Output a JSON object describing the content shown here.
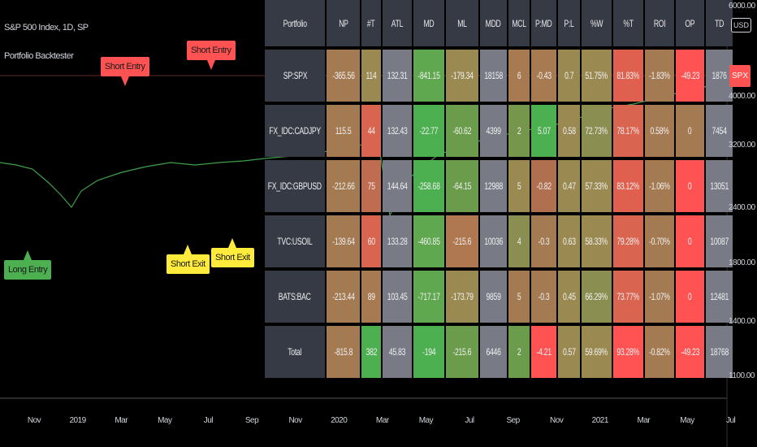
{
  "chart_title": "S&P 500 Index, 1D, SP",
  "indicator_title": "Portfolio Backtester",
  "signals": [
    {
      "label": "Short Entry",
      "color": "#ff5252"
    },
    {
      "label": "Short Entry",
      "color": "#ff5252"
    },
    {
      "label": "Long Entry",
      "color": "#4caf50"
    },
    {
      "label": "Short Exit",
      "color": "#ffeb3b"
    },
    {
      "label": "Short Exit",
      "color": "#ffeb3b"
    }
  ],
  "table": {
    "headers": [
      "Portfolio",
      "NP",
      "#T",
      "ATL",
      "MD",
      "ML",
      "MDD",
      "MCL",
      "P:MD",
      "P:L",
      "%W",
      "%T",
      "ROI",
      "OP",
      "TD"
    ],
    "rows": [
      {
        "name": "SP:SPX",
        "cells": [
          [
            "-365.56",
            "#a47a52"
          ],
          [
            "114",
            "#9a8a52"
          ],
          [
            "132.31",
            "#787b86"
          ],
          [
            "-841.15",
            "#5fa84f"
          ],
          [
            "-179.34",
            "#9a8a52"
          ],
          [
            "18158",
            "#787b86"
          ],
          [
            "6",
            "#a87a52"
          ],
          [
            "-0.43",
            "#a87a52"
          ],
          [
            "0.7",
            "#9a8a52"
          ],
          [
            "51.75%",
            "#9a8a52"
          ],
          [
            "81.83%",
            "#e0604f"
          ],
          [
            "-1.83%",
            "#a47a52"
          ],
          [
            "-49.23",
            "#ff5252"
          ],
          [
            "1876",
            "#787b86"
          ]
        ]
      },
      {
        "name": "FX_IDC:CADJPY",
        "cells": [
          [
            "115.5",
            "#a47a52"
          ],
          [
            "44",
            "#d9644f"
          ],
          [
            "132.43",
            "#787b86"
          ],
          [
            "-22.77",
            "#4caf50"
          ],
          [
            "-60.62",
            "#6a9c4c"
          ],
          [
            "4399",
            "#787b86"
          ],
          [
            "2",
            "#76964c"
          ],
          [
            "5.07",
            "#4caf50"
          ],
          [
            "0.58",
            "#9a8a52"
          ],
          [
            "72.73%",
            "#8a8e50"
          ],
          [
            "78.17%",
            "#d9644f"
          ],
          [
            "0.58%",
            "#a47a52"
          ],
          [
            "0",
            "#a47a52"
          ],
          [
            "7454",
            "#787b86"
          ]
        ]
      },
      {
        "name": "FX_IDC:GBPUSD",
        "cells": [
          [
            "-212.66",
            "#a47a52"
          ],
          [
            "75",
            "#c06c50"
          ],
          [
            "144.64",
            "#787b86"
          ],
          [
            "-258.68",
            "#4caf50"
          ],
          [
            "-64.15",
            "#6a9c4c"
          ],
          [
            "12988",
            "#787b86"
          ],
          [
            "5",
            "#9a8a52"
          ],
          [
            "-0.82",
            "#b0704f"
          ],
          [
            "0.47",
            "#9a8a52"
          ],
          [
            "57.33%",
            "#9a8a52"
          ],
          [
            "83.12%",
            "#e0604f"
          ],
          [
            "-1.06%",
            "#a47a52"
          ],
          [
            "0",
            "#ff5252"
          ],
          [
            "13051",
            "#787b86"
          ]
        ]
      },
      {
        "name": "TVC:USOIL",
        "cells": [
          [
            "-139.64",
            "#a47a52"
          ],
          [
            "60",
            "#d9644f"
          ],
          [
            "133.28",
            "#787b86"
          ],
          [
            "-460.85",
            "#5fa84f"
          ],
          [
            "-215.6",
            "#b07850"
          ],
          [
            "10036",
            "#787b86"
          ],
          [
            "4",
            "#8a8e50"
          ],
          [
            "-0.3",
            "#a47a52"
          ],
          [
            "0.63",
            "#9a8a52"
          ],
          [
            "58.33%",
            "#9a8a52"
          ],
          [
            "79.28%",
            "#d9644f"
          ],
          [
            "-0.70%",
            "#a47a52"
          ],
          [
            "0",
            "#ff5252"
          ],
          [
            "10087",
            "#787b86"
          ]
        ]
      },
      {
        "name": "BATS:BAC",
        "cells": [
          [
            "-213.44",
            "#a47a52"
          ],
          [
            "89",
            "#a87a52"
          ],
          [
            "103.45",
            "#787b86"
          ],
          [
            "-717.17",
            "#5fa84f"
          ],
          [
            "-173.79",
            "#9a8a52"
          ],
          [
            "9859",
            "#787b86"
          ],
          [
            "5",
            "#a47a52"
          ],
          [
            "-0.3",
            "#a47a52"
          ],
          [
            "0.45",
            "#9a8a52"
          ],
          [
            "66.29%",
            "#8a8e50"
          ],
          [
            "73.77%",
            "#d9644f"
          ],
          [
            "-1.07%",
            "#a47a52"
          ],
          [
            "0",
            "#ff5252"
          ],
          [
            "12481",
            "#787b86"
          ]
        ]
      },
      {
        "name": "Total",
        "cells": [
          [
            "-815.8",
            "#a47a52"
          ],
          [
            "382",
            "#4caf50"
          ],
          [
            "45.83",
            "#787b86"
          ],
          [
            "-194",
            "#4caf50"
          ],
          [
            "-215.6",
            "#6a9c4c"
          ],
          [
            "6446",
            "#787b86"
          ],
          [
            "2",
            "#6a9c4c"
          ],
          [
            "-4.21",
            "#ff5252"
          ],
          [
            "0.57",
            "#9a8a52"
          ],
          [
            "59.69%",
            "#9a8a52"
          ],
          [
            "93.28%",
            "#ff5252"
          ],
          [
            "-0.82%",
            "#a47a52"
          ],
          [
            "-49.23",
            "#ff5252"
          ],
          [
            "18768",
            "#787b86"
          ]
        ]
      }
    ]
  },
  "y_axis": {
    "currency": "USD",
    "ticks": [
      "6000.00",
      "4000.00",
      "3200.00",
      "2400.00",
      "1800.00",
      "1400.00",
      "1100.00"
    ],
    "last_label": "SPX"
  },
  "x_axis": {
    "ticks": [
      "Nov",
      "2019",
      "Mar",
      "May",
      "Jul",
      "Sep",
      "Nov",
      "2020",
      "Mar",
      "May",
      "Jul",
      "Sep",
      "Nov",
      "2021",
      "Mar",
      "May",
      "Jul"
    ]
  }
}
